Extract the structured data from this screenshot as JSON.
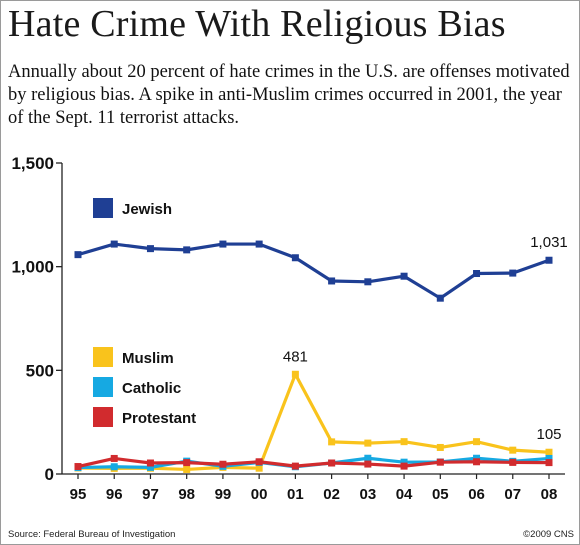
{
  "title": "Hate Crime With Religious Bias",
  "subtitle": "Annually about 20 percent of hate crimes in the U.S. are offenses motivated by religious bias. A spike in anti-Muslim crimes occurred in 2001, the year of the Sept. 11 terrorist attacks.",
  "source": "Source: Federal Bureau of Investigation",
  "credit": "©2009 CNS",
  "chart_data": {
    "type": "line",
    "x": [
      "95",
      "96",
      "97",
      "98",
      "99",
      "00",
      "01",
      "02",
      "03",
      "04",
      "05",
      "06",
      "07",
      "08"
    ],
    "ylim": [
      0,
      1500
    ],
    "yticks": [
      {
        "value": 0,
        "label": "0"
      },
      {
        "value": 500,
        "label": "500"
      },
      {
        "value": 1000,
        "label": "1,000"
      },
      {
        "value": 1500,
        "label": "1,500"
      }
    ],
    "grid": false,
    "series": [
      {
        "name": "Jewish",
        "color": "#1f3f94",
        "values": [
          1058,
          1109,
          1087,
          1081,
          1109,
          1109,
          1043,
          931,
          927,
          954,
          848,
          967,
          969,
          1031
        ]
      },
      {
        "name": "Muslim",
        "color": "#f9c31c",
        "values": [
          29,
          27,
          28,
          22,
          32,
          28,
          481,
          155,
          149,
          156,
          128,
          156,
          115,
          105
        ]
      },
      {
        "name": "Catholic",
        "color": "#16a9e2",
        "values": [
          31,
          35,
          32,
          62,
          37,
          56,
          35,
          53,
          76,
          57,
          58,
          76,
          61,
          75
        ]
      },
      {
        "name": "Protestant",
        "color": "#d12b2e",
        "values": [
          36,
          75,
          53,
          55,
          47,
          59,
          38,
          53,
          48,
          38,
          57,
          59,
          56,
          55
        ]
      }
    ],
    "annotations": [
      {
        "series": "Jewish",
        "x": "08",
        "text": "1,031"
      },
      {
        "series": "Muslim",
        "x": "01",
        "text": "481"
      },
      {
        "series": "Muslim",
        "x": "08",
        "text": "105"
      }
    ]
  }
}
